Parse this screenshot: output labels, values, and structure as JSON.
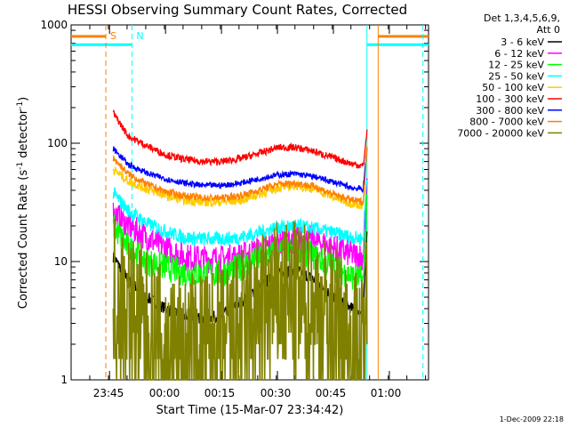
{
  "chart_data": {
    "type": "line",
    "title": "HESSI Observing Summary Count Rates, Corrected",
    "xlabel": "Start Time (15-Mar-07 23:34:42)",
    "ylabel": "Corrected Count Rate (s-1 detector-1)",
    "ylabel_parts": {
      "main": "Corrected Count Rate (s",
      "sup1": "-1",
      "mid": " detector",
      "sup2": "-1",
      "end": ")"
    },
    "xlim": [
      "23:34:42",
      "01:10:30"
    ],
    "ylim": [
      1,
      1000
    ],
    "y_scale": "log",
    "x_ticks": [
      "23:45",
      "00:00",
      "00:15",
      "00:30",
      "00:45",
      "01:00"
    ],
    "y_ticks": [
      "1",
      "10",
      "100",
      "1000"
    ],
    "legend_header": [
      "Det 1,3,4,5,6,9,",
      "Att 0"
    ],
    "legend_position": "right",
    "series": [
      {
        "name": "3 - 6 keV",
        "color": "#000000",
        "x": [
          "23:46",
          "23:50",
          "23:55",
          "00:00",
          "00:05",
          "00:10",
          "00:15",
          "00:20",
          "00:25",
          "00:30",
          "00:35",
          "00:40",
          "00:45",
          "00:50",
          "00:53",
          "00:54"
        ],
        "y": [
          11,
          7,
          5,
          4,
          3.5,
          3.3,
          3.5,
          4.5,
          6,
          8,
          8.5,
          7,
          5,
          4,
          3.6,
          20
        ]
      },
      {
        "name": "6 - 12 keV",
        "color": "#ff00ff",
        "x": [
          "23:46",
          "23:50",
          "23:55",
          "00:00",
          "00:05",
          "00:10",
          "00:15",
          "00:20",
          "00:25",
          "00:30",
          "00:35",
          "00:40",
          "00:45",
          "00:50",
          "00:53",
          "00:54"
        ],
        "y": [
          26,
          20,
          16,
          13,
          11,
          10.5,
          10.5,
          11,
          12.5,
          14.5,
          15.5,
          15,
          13,
          11.5,
          11,
          40
        ]
      },
      {
        "name": "12 - 25 keV",
        "color": "#00ff00",
        "x": [
          "23:46",
          "23:50",
          "23:55",
          "00:00",
          "00:05",
          "00:10",
          "00:15",
          "00:20",
          "00:25",
          "00:30",
          "00:35",
          "00:40",
          "00:45",
          "00:50",
          "00:53",
          "00:54"
        ],
        "y": [
          20,
          13,
          10,
          9,
          8,
          7.8,
          8,
          9,
          10.5,
          12,
          12.5,
          11,
          9,
          7.5,
          7,
          32
        ]
      },
      {
        "name": "25 - 50 keV",
        "color": "#00ffff",
        "x": [
          "23:46",
          "23:50",
          "23:55",
          "00:00",
          "00:05",
          "00:10",
          "00:15",
          "00:20",
          "00:25",
          "00:30",
          "00:35",
          "00:40",
          "00:45",
          "00:50",
          "00:53",
          "00:54"
        ],
        "y": [
          38,
          27,
          21,
          18,
          16,
          15.5,
          15.5,
          16,
          17.5,
          19.5,
          20,
          19,
          17.5,
          16,
          15.5,
          55
        ]
      },
      {
        "name": "50 - 100 keV",
        "color": "#ffcc00",
        "x": [
          "23:46",
          "23:50",
          "23:55",
          "00:00",
          "00:05",
          "00:10",
          "00:15",
          "00:20",
          "00:25",
          "00:30",
          "00:35",
          "00:40",
          "00:45",
          "00:50",
          "00:53",
          "00:54"
        ],
        "y": [
          60,
          48,
          41,
          36,
          33,
          32,
          32,
          33,
          37,
          42,
          44,
          41,
          35,
          31,
          30,
          90
        ]
      },
      {
        "name": "100 - 300 keV",
        "color": "#ff0000",
        "x": [
          "23:46",
          "23:50",
          "23:55",
          "00:00",
          "00:05",
          "00:10",
          "00:15",
          "00:20",
          "00:25",
          "00:30",
          "00:35",
          "00:40",
          "00:45",
          "00:50",
          "00:53",
          "00:54"
        ],
        "y": [
          180,
          115,
          95,
          80,
          73,
          70,
          70,
          74,
          82,
          92,
          92,
          85,
          75,
          67,
          64,
          125
        ]
      },
      {
        "name": "300 - 800 keV",
        "color": "#0000ff",
        "x": [
          "23:46",
          "23:50",
          "23:55",
          "00:00",
          "00:05",
          "00:10",
          "00:15",
          "00:20",
          "00:25",
          "00:30",
          "00:35",
          "00:40",
          "00:45",
          "00:50",
          "00:53",
          "00:54"
        ],
        "y": [
          90,
          66,
          56,
          50,
          46,
          44,
          44,
          46,
          50,
          54,
          55,
          52,
          47,
          42,
          41,
          90
        ]
      },
      {
        "name": "800 - 7000 keV",
        "color": "#ff8000",
        "x": [
          "23:46",
          "23:50",
          "23:55",
          "00:00",
          "00:05",
          "00:10",
          "00:15",
          "00:20",
          "00:25",
          "00:30",
          "00:35",
          "00:40",
          "00:45",
          "00:50",
          "00:53",
          "00:54"
        ],
        "y": [
          75,
          55,
          45,
          39,
          36,
          34.5,
          34.5,
          36,
          40,
          45,
          46,
          43,
          37,
          33,
          32,
          90
        ]
      },
      {
        "name": "7000 - 20000 keV",
        "color": "#808000",
        "x": [
          "23:46",
          "23:50",
          "23:55",
          "00:00",
          "00:05",
          "00:10",
          "00:15",
          "00:20",
          "00:25",
          "00:30",
          "00:35",
          "00:40",
          "00:45",
          "00:50",
          "00:53",
          "00:54"
        ],
        "y": [
          5.5,
          4,
          2.5,
          1.8,
          1.6,
          1.8,
          2,
          2.5,
          3.5,
          4.5,
          4.5,
          4,
          3,
          2,
          1.5,
          5
        ]
      }
    ],
    "markers": [
      {
        "label": "S",
        "color": "#ff8000",
        "style": "dashed",
        "x": "23:44"
      },
      {
        "label": "N",
        "color": "#00ffff",
        "style": "dashed",
        "x": "23:51"
      },
      {
        "label": "",
        "color": "#ff8000",
        "style": "solid",
        "x": "00:57"
      },
      {
        "label": "",
        "color": "#00ffff",
        "style": "solid",
        "x": "00:54"
      },
      {
        "label": "",
        "color": "#00ffff",
        "style": "dashed",
        "x": "01:09"
      }
    ],
    "attenuator_segments": [
      {
        "color": "#ff8000",
        "x_start": "23:34:42",
        "x_end": "23:44",
        "level": 800
      },
      {
        "color": "#00ffff",
        "x_start": "23:34:42",
        "x_end": "23:51",
        "level": 680
      },
      {
        "color": "#ff8000",
        "x_start": "00:57",
        "x_end": "01:10:30",
        "level": 800
      },
      {
        "color": "#00ffff",
        "x_start": "00:54",
        "x_end": "01:10:30",
        "level": 680
      }
    ]
  },
  "timestamp": "1-Dec-2009 22:18"
}
